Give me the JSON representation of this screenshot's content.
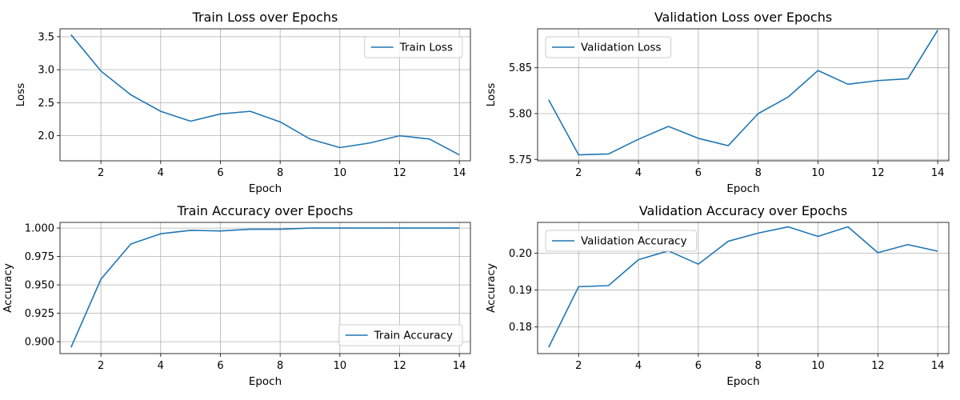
{
  "chart_data": [
    {
      "type": "line",
      "title": "Train Loss over Epochs",
      "xlabel": "Epoch",
      "ylabel": "Loss",
      "legend": "top-right",
      "grid": true,
      "xlim": [
        0.63,
        14.37
      ],
      "ylim": [
        1.62,
        3.62
      ],
      "xticks": [
        2,
        4,
        6,
        8,
        10,
        12,
        14
      ],
      "yticks": [
        2.0,
        2.5,
        3.0,
        3.5
      ],
      "ytick_decimals": 1,
      "series": [
        {
          "name": "Train Loss",
          "color": "#1f77b4",
          "x": [
            1,
            2,
            3,
            4,
            5,
            6,
            7,
            8,
            9,
            10,
            11,
            12,
            13,
            14
          ],
          "y": [
            3.53,
            2.98,
            2.62,
            2.37,
            2.22,
            2.33,
            2.37,
            2.21,
            1.95,
            1.82,
            1.89,
            2.0,
            1.95,
            1.71
          ]
        }
      ]
    },
    {
      "type": "line",
      "title": "Validation Loss over Epochs",
      "xlabel": "Epoch",
      "ylabel": "Loss",
      "legend": "top-left",
      "grid": true,
      "xlim": [
        0.63,
        14.37
      ],
      "ylim": [
        5.7485,
        5.8925
      ],
      "xticks": [
        2,
        4,
        6,
        8,
        10,
        12,
        14
      ],
      "yticks": [
        5.75,
        5.8,
        5.85
      ],
      "ytick_decimals": 2,
      "series": [
        {
          "name": "Validation Loss",
          "color": "#1f77b4",
          "x": [
            1,
            2,
            3,
            4,
            5,
            6,
            7,
            8,
            9,
            10,
            11,
            12,
            13,
            14
          ],
          "y": [
            5.815,
            5.755,
            5.756,
            5.772,
            5.786,
            5.773,
            5.765,
            5.8,
            5.818,
            5.847,
            5.832,
            5.836,
            5.838,
            5.891
          ]
        }
      ]
    },
    {
      "type": "line",
      "title": "Train Accuracy over Epochs",
      "xlabel": "Epoch",
      "ylabel": "Accuracy",
      "legend": "bottom-right",
      "grid": true,
      "xlim": [
        0.63,
        14.37
      ],
      "ylim": [
        0.8895,
        1.005
      ],
      "xticks": [
        2,
        4,
        6,
        8,
        10,
        12,
        14
      ],
      "yticks": [
        0.9,
        0.925,
        0.95,
        0.975,
        1.0
      ],
      "ytick_decimals": 3,
      "series": [
        {
          "name": "Train Accuracy",
          "color": "#1f77b4",
          "x": [
            1,
            2,
            3,
            4,
            5,
            6,
            7,
            8,
            9,
            10,
            11,
            12,
            13,
            14
          ],
          "y": [
            0.895,
            0.955,
            0.986,
            0.995,
            0.998,
            0.9975,
            0.999,
            0.999,
            1.0,
            1.0,
            1.0,
            1.0,
            1.0,
            1.0
          ]
        }
      ]
    },
    {
      "type": "line",
      "title": "Validation Accuracy over Epochs",
      "xlabel": "Epoch",
      "ylabel": "Accuracy",
      "legend": "top-left",
      "grid": true,
      "xlim": [
        0.63,
        14.37
      ],
      "ylim": [
        0.1728,
        0.2083
      ],
      "xticks": [
        2,
        4,
        6,
        8,
        10,
        12,
        14
      ],
      "yticks": [
        0.18,
        0.19,
        0.2
      ],
      "ytick_decimals": 2,
      "series": [
        {
          "name": "Validation Accuracy",
          "color": "#1f77b4",
          "x": [
            1,
            2,
            3,
            4,
            5,
            6,
            7,
            8,
            9,
            10,
            11,
            12,
            13,
            14
          ],
          "y": [
            0.1745,
            0.1909,
            0.1912,
            0.1982,
            0.2006,
            0.197,
            0.2032,
            0.2054,
            0.2071,
            0.2045,
            0.2071,
            0.2001,
            0.2023,
            0.2005
          ]
        }
      ]
    }
  ]
}
